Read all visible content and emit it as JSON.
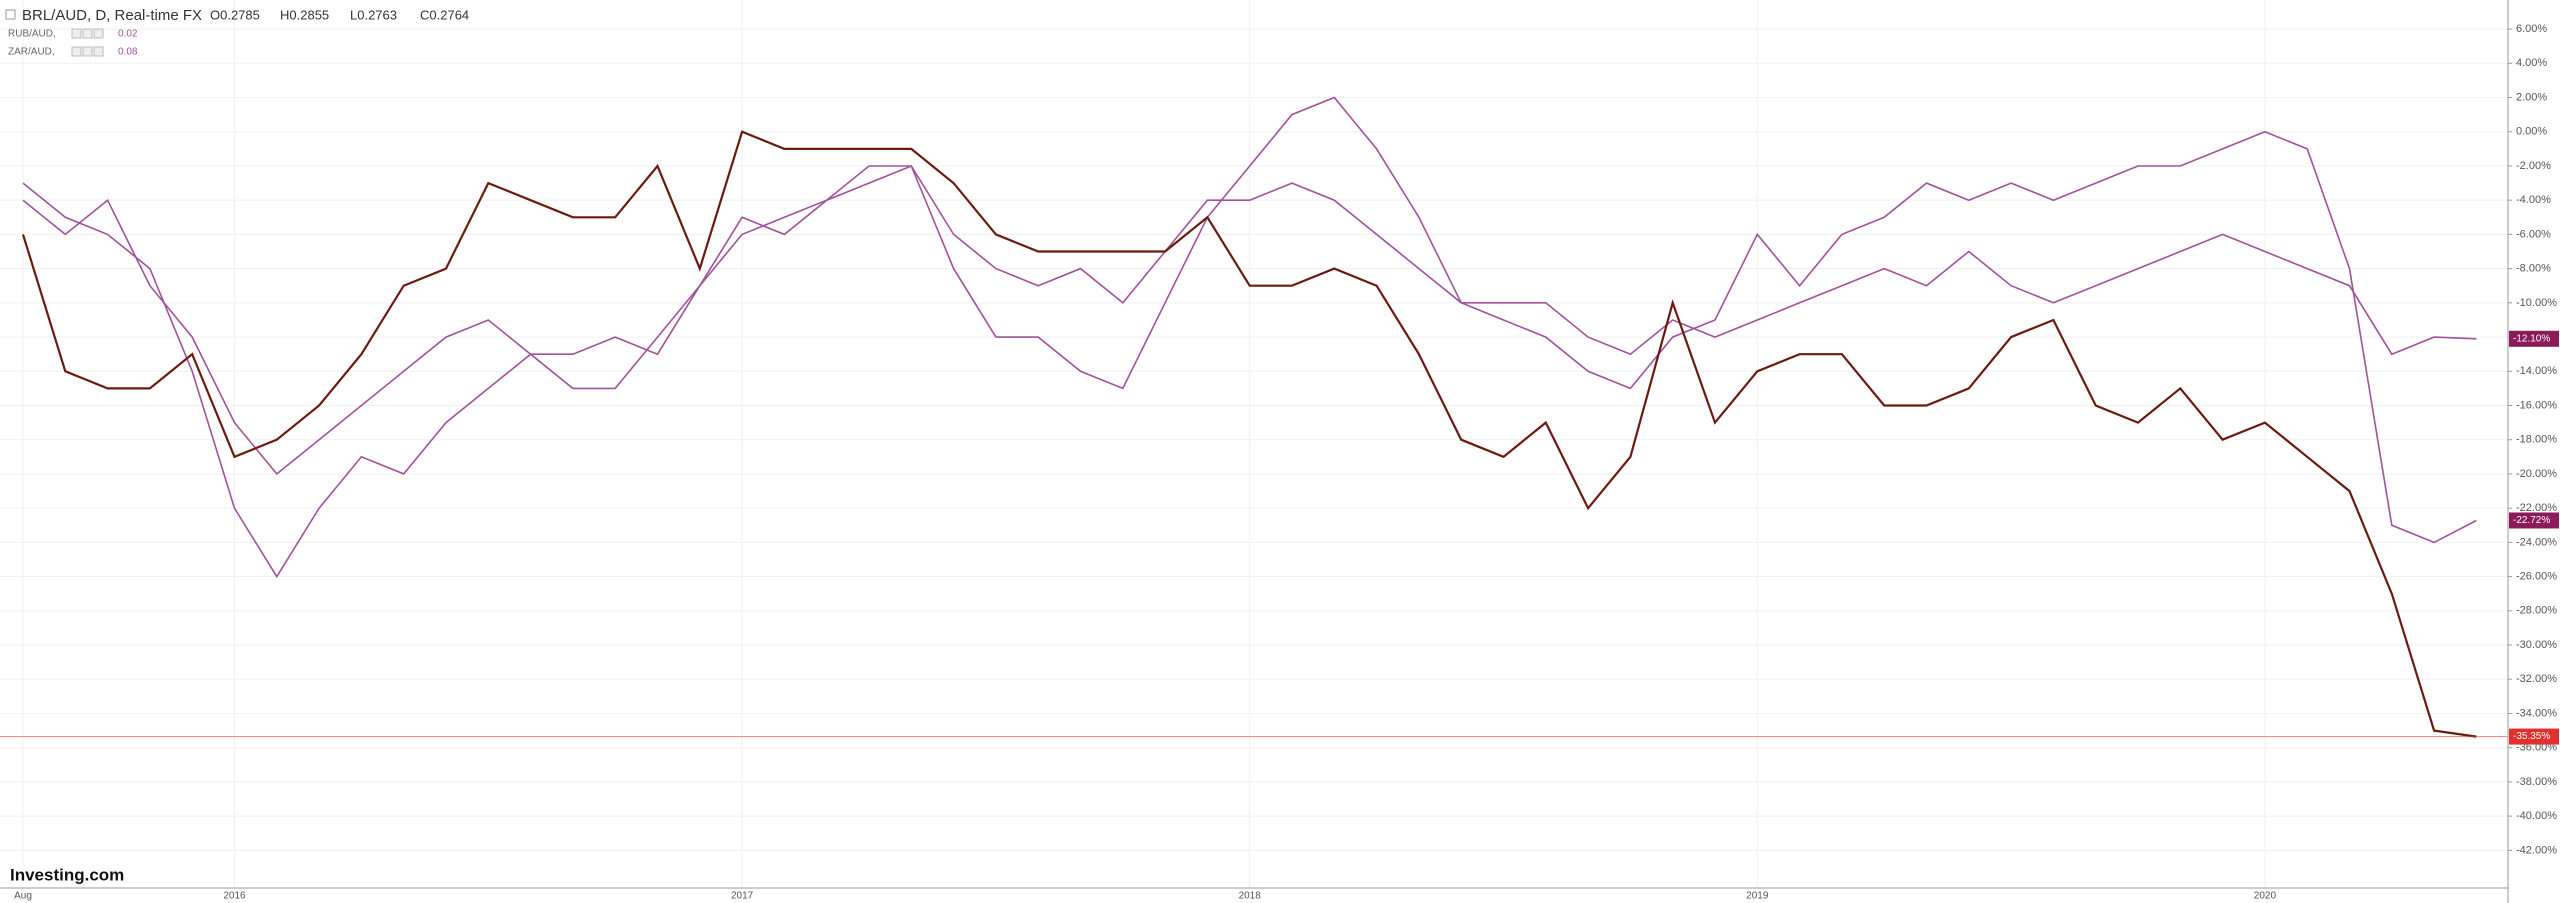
{
  "chart_data": {
    "type": "line",
    "title": "BRL/AUD, D, Real-time FX",
    "ohlc": [
      "O0.2785",
      "H0.2855",
      "L0.2763",
      "C0.2764"
    ],
    "logo": "Investing.com",
    "categories": [
      "Aug",
      null,
      null,
      null,
      null,
      "2016",
      null,
      null,
      null,
      null,
      null,
      null,
      null,
      null,
      null,
      null,
      null,
      "2017",
      null,
      null,
      null,
      null,
      null,
      null,
      null,
      null,
      null,
      null,
      null,
      "2018",
      null,
      null,
      null,
      null,
      null,
      null,
      null,
      null,
      null,
      null,
      null,
      "2019",
      null,
      null,
      null,
      null,
      null,
      null,
      null,
      null,
      null,
      null,
      null,
      "2020",
      null,
      null,
      null,
      null,
      null
    ],
    "values": [
      -6,
      -14,
      -15,
      -15,
      -13,
      -19,
      -18,
      -16,
      -13,
      -9,
      -8,
      -3,
      -4,
      -5,
      -5,
      -2,
      -8,
      0,
      -1,
      -1,
      -1,
      -1,
      -3,
      -6,
      -7,
      -7,
      -7,
      -7,
      -5,
      -9,
      -9,
      -8,
      -9,
      -13,
      -18,
      -19,
      -17,
      -22,
      -19,
      -10,
      -17,
      -14,
      -13,
      -13,
      -16,
      -16,
      -15,
      -12,
      -11,
      -16,
      -17,
      -15,
      -18,
      -17,
      -19,
      -21,
      -27,
      -35,
      -35.35
    ],
    "color": "#6b1a10",
    "last_label": "-35.35%",
    "label_color": "#e0312f",
    "series": [
      {
        "name": "RUB/AUD,",
        "value": 0.02,
        "color": "#a0529a",
        "label_color": "#8b1a5a",
        "last_label": "-22.72%",
        "values": [
          -3,
          -5,
          -6,
          -8,
          -14,
          -22,
          -26,
          -22,
          -19,
          -20,
          -17,
          -15,
          -13,
          -15,
          -15,
          -12,
          -9,
          -6,
          -5,
          -4,
          -2,
          -2,
          -8,
          -12,
          -12,
          -14,
          -15,
          -10,
          -5,
          -2,
          1,
          2,
          -1,
          -5,
          -10,
          -11,
          -12,
          -14,
          -15,
          -12,
          -11,
          -6,
          -9,
          -6,
          -5,
          -3,
          -4,
          -3,
          -4,
          -3,
          -2,
          -2,
          -1,
          0,
          -1,
          -8,
          -23,
          -24,
          -22.72
        ]
      },
      {
        "name": "ZAR/AUD,",
        "value": 0.08,
        "color": "#a0529a",
        "label_color": "#8b1a5a",
        "last_label": "-12.10%",
        "values": [
          -4,
          -6,
          -4,
          -9,
          -12,
          -17,
          -20,
          -18,
          -16,
          -14,
          -12,
          -11,
          -13,
          -13,
          -12,
          -13,
          -9,
          -5,
          -6,
          -4,
          -3,
          -2,
          -6,
          -8,
          -9,
          -8,
          -10,
          -7,
          -4,
          -4,
          -3,
          -4,
          -6,
          -8,
          -10,
          -10,
          -10,
          -12,
          -13,
          -11,
          -12,
          -11,
          -10,
          -9,
          -8,
          -9,
          -7,
          -9,
          -10,
          -9,
          -8,
          -7,
          -6,
          -7,
          -8,
          -9,
          -13,
          -12,
          -12.1
        ]
      }
    ],
    "ylim": [
      -44.2,
      7.7
    ],
    "yticks": [
      {
        "value": 6,
        "label": "6.00%"
      },
      {
        "value": 4,
        "label": "4.00%"
      },
      {
        "value": 2,
        "label": "2.00%"
      },
      {
        "value": 0,
        "label": "0.00%"
      },
      {
        "value": -2,
        "label": "-2.00%"
      },
      {
        "value": -4,
        "label": "-4.00%"
      },
      {
        "value": -6,
        "label": "-6.00%"
      },
      {
        "value": -8,
        "label": "-8.00%"
      },
      {
        "value": -10,
        "label": "-10.00%"
      },
      {
        "value": -12,
        "label": "-12.00%"
      },
      {
        "value": -14,
        "label": "-14.00%"
      },
      {
        "value": -16,
        "label": "-16.00%"
      },
      {
        "value": -18,
        "label": "-18.00%"
      },
      {
        "value": -20,
        "label": "-20.00%"
      },
      {
        "value": -22,
        "label": "-22.00%"
      },
      {
        "value": -24,
        "label": "-24.00%"
      },
      {
        "value": -26,
        "label": "-26.00%"
      },
      {
        "value": -28,
        "label": "-28.00%"
      },
      {
        "value": -30,
        "label": "-30.00%"
      },
      {
        "value": -32,
        "label": "-32.00%"
      },
      {
        "value": -34,
        "label": "-34.00%"
      },
      {
        "value": -36,
        "label": "-36.00%"
      },
      {
        "value": -38,
        "label": "-38.00%"
      },
      {
        "value": -40,
        "label": "-40.00%"
      },
      {
        "value": -42,
        "label": "-42.00%"
      }
    ],
    "grid": true
  }
}
